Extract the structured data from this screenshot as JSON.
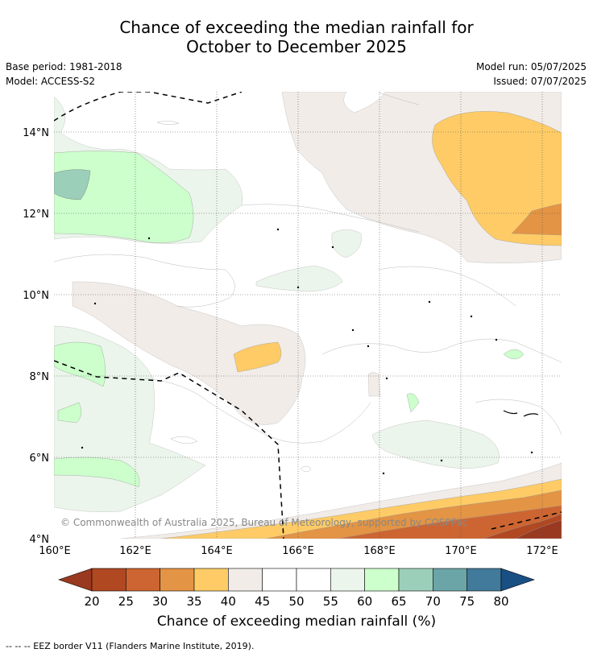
{
  "title": {
    "line1": "Chance of exceeding the median rainfall for",
    "line2": "October to December 2025"
  },
  "meta": {
    "base_period": "Base period: 1981-2018",
    "model": "Model: ACCESS-S2",
    "model_run": "Model run: 05/07/2025",
    "issued": "Issued: 07/07/2025"
  },
  "map": {
    "lat_labels": [
      "14°N",
      "12°N",
      "10°N",
      "8°N",
      "6°N",
      "4°N"
    ],
    "lon_labels": [
      "160°E",
      "162°E",
      "164°E",
      "166°E",
      "168°E",
      "170°E",
      "172°E"
    ],
    "copyright": "© Commonwealth of Australia 2025, Bureau of Meteorology, supported by COSPPac"
  },
  "colorbar": {
    "ticks": [
      "20",
      "25",
      "30",
      "35",
      "40",
      "45",
      "50",
      "55",
      "60",
      "65",
      "70",
      "75",
      "80"
    ],
    "colors": {
      "lt20": "#99391f",
      "20_25": "#b04822",
      "25_30": "#cd6532",
      "30_35": "#e39444",
      "35_40": "#fecb66",
      "40_45": "#f1ece8",
      "45_50": "#ffffff",
      "50_55": "#ffffff",
      "55_60": "#ebf5eb",
      "60_65": "#ccffcc",
      "65_70": "#9ccfb9",
      "70_75": "#6ca5a7",
      "75_80": "#417a9a",
      "gt80": "#1a4f84"
    },
    "label": "Chance of exceeding median rainfall (%)"
  },
  "footnote": "--  --  -- EEZ border V11 (Flanders Marine Institute, 2019)."
}
